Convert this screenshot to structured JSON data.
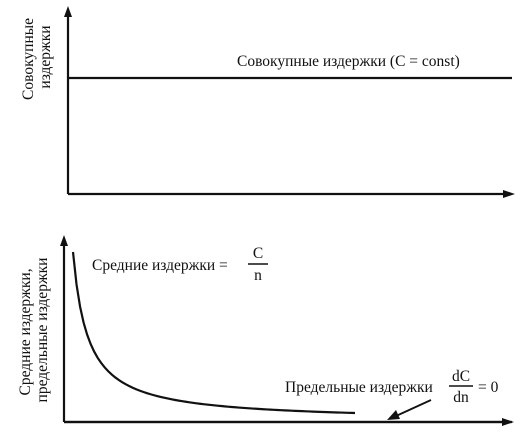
{
  "chart_data": [
    {
      "type": "line",
      "title": "",
      "xlabel": "",
      "ylabel": "Совокупные издержки",
      "ylabel_lines": [
        "Совокупные",
        "издержки"
      ],
      "grid": false,
      "series": [
        {
          "name": "Совокупные издержки (C = const)",
          "x": [
            0,
            1
          ],
          "y": [
            1,
            1
          ]
        }
      ],
      "annotations": [
        {
          "text": "Совокупные издержки  (C = const)"
        }
      ]
    },
    {
      "type": "line",
      "title": "",
      "xlabel": "",
      "ylabel": "Средние издержки, предельные издержки",
      "ylabel_lines": [
        "Средние издержки,",
        "предельные издержки"
      ],
      "grid": false,
      "series": [
        {
          "name": "Средние издержки",
          "x": [
            1,
            1.25,
            1.5,
            2,
            2.5,
            3,
            4,
            5,
            6,
            7,
            8,
            10,
            12,
            14,
            16,
            18,
            20
          ],
          "y": [
            20,
            16,
            13.33,
            10,
            8,
            6.67,
            5,
            4,
            3.33,
            2.86,
            2.5,
            2,
            1.67,
            1.43,
            1.25,
            1.11,
            1
          ]
        },
        {
          "name": "Предельные издержки",
          "x": [
            1,
            20
          ],
          "y": [
            0,
            0
          ]
        }
      ],
      "annotations": [
        {
          "label": "Средние издержки  =",
          "numerator": "C",
          "denominator": "n"
        },
        {
          "label": "Предельные издержки",
          "numerator": "dC",
          "denominator": "dn",
          "suffix": "= 0"
        }
      ]
    }
  ]
}
